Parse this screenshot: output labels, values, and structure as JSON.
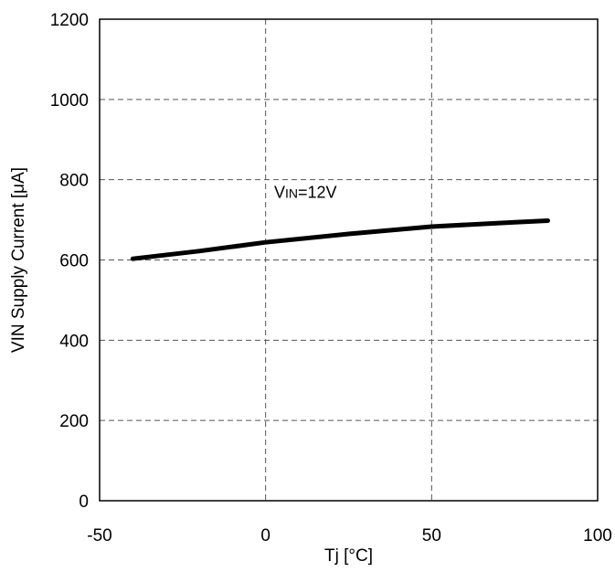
{
  "chart_data": {
    "type": "line",
    "title": "",
    "xlabel": "Tj [°C]",
    "ylabel": "VIN Supply Current [μA]",
    "xlim": [
      -50,
      100
    ],
    "ylim": [
      0,
      1200
    ],
    "x_ticks": [
      -50,
      0,
      50,
      100
    ],
    "y_ticks": [
      0,
      200,
      400,
      600,
      800,
      1000,
      1200
    ],
    "grid": true,
    "grid_style": "dashed",
    "legend": "none",
    "annotations": [
      {
        "main": "V",
        "sub": "IN",
        "rest": "=12V",
        "x": 12,
        "y": 755
      }
    ],
    "series": [
      {
        "name": "",
        "color": "#000000",
        "x": [
          -40,
          -20,
          0,
          25,
          50,
          75,
          85
        ],
        "y": [
          603,
          622,
          644,
          665,
          683,
          694,
          698
        ]
      }
    ]
  }
}
